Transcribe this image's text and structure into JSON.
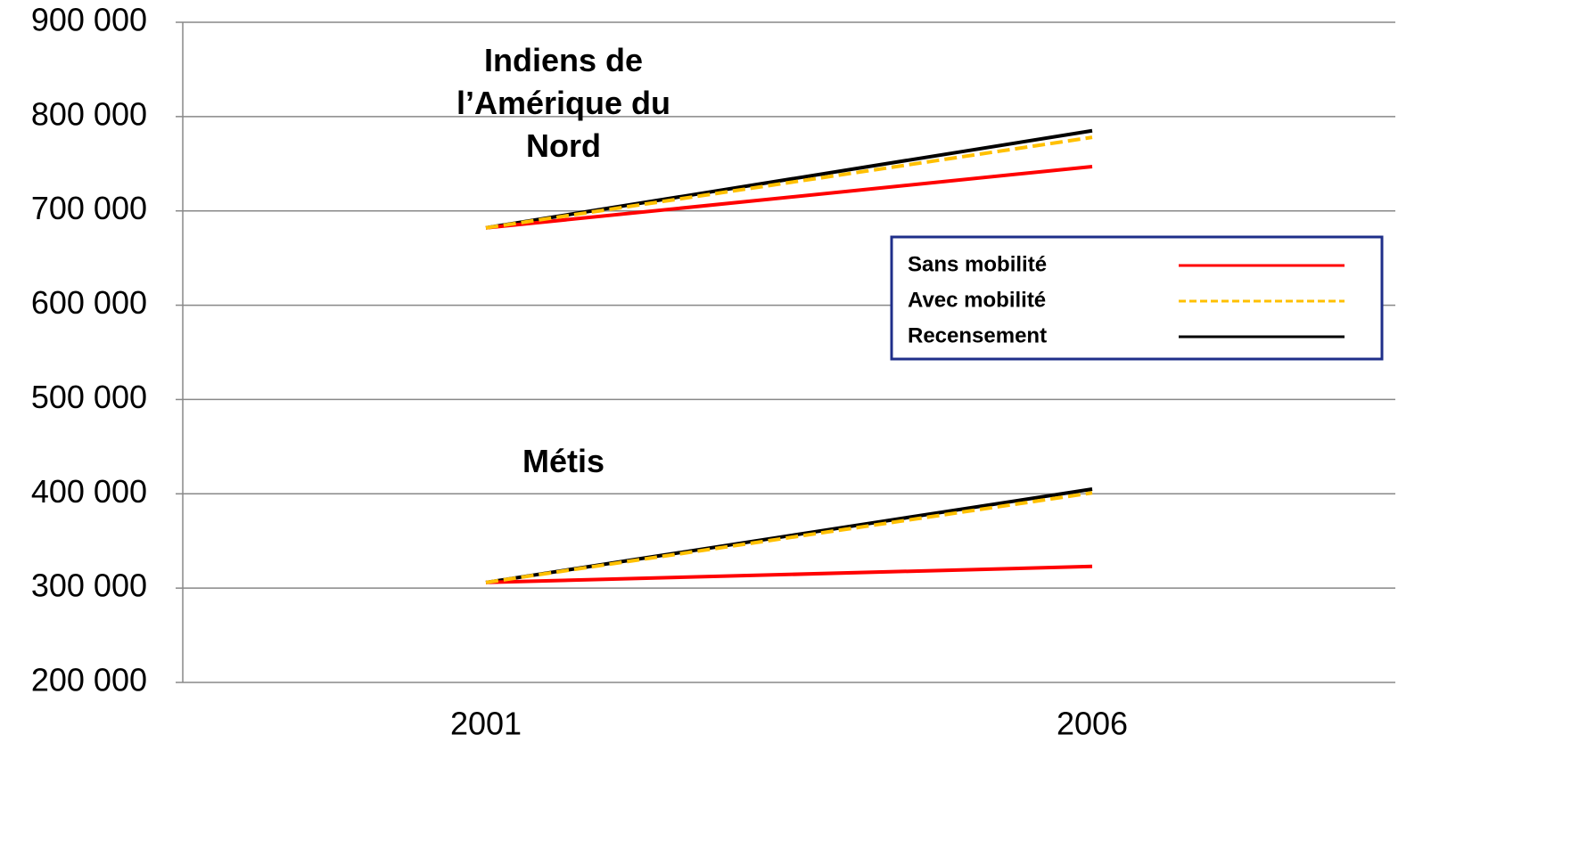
{
  "chart_data": {
    "type": "line",
    "categories": [
      "2001",
      "2006"
    ],
    "ylim": [
      200000,
      900000
    ],
    "yticks": [
      {
        "value": 200000,
        "label": "200 000"
      },
      {
        "value": 300000,
        "label": "300 000"
      },
      {
        "value": 400000,
        "label": "400 000"
      },
      {
        "value": 500000,
        "label": "500 000"
      },
      {
        "value": 600000,
        "label": "600 000"
      },
      {
        "value": 700000,
        "label": "700 000"
      },
      {
        "value": 800000,
        "label": "800 000"
      },
      {
        "value": 900000,
        "label": "900 000"
      }
    ],
    "grid": true,
    "series": [
      {
        "name": "Sans mobilité",
        "color": "#ff0000",
        "dash": false
      },
      {
        "name": "Avec mobilité",
        "color": "#ffc000",
        "dash": true
      },
      {
        "name": "Recensement",
        "color": "#000000",
        "dash": false
      }
    ],
    "groups": [
      {
        "label": "Indiens de l’Amérique du Nord",
        "series": [
          {
            "values": [
              682000,
              747000
            ]
          },
          {
            "values": [
              682000,
              778000
            ]
          },
          {
            "values": [
              682000,
              785000
            ]
          }
        ]
      },
      {
        "label": "Métis",
        "series": [
          {
            "values": [
              306000,
              323000
            ]
          },
          {
            "values": [
              306000,
              401000
            ]
          },
          {
            "values": [
              306000,
              405000
            ]
          }
        ]
      }
    ]
  }
}
